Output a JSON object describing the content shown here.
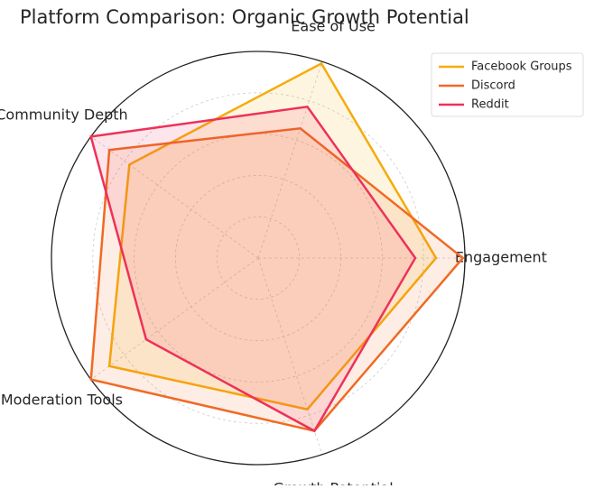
{
  "chart_data": {
    "type": "radar",
    "title": "Platform Comparison: Organic Growth Potential",
    "categories": [
      "Engagement",
      "Ease of Use",
      "Community Depth",
      "Moderation Tools",
      "Growth Potential"
    ],
    "series": [
      {
        "name": "Facebook Groups",
        "color": "#f7ab0a",
        "values": [
          8.6,
          9.9,
          7.7,
          8.9,
          7.7
        ]
      },
      {
        "name": "Discord",
        "color": "#f06a24",
        "values": [
          9.9,
          6.6,
          8.9,
          10,
          8.8
        ]
      },
      {
        "name": "Reddit",
        "color": "#ee3158",
        "values": [
          7.6,
          7.7,
          10,
          6.7,
          8.8
        ]
      }
    ],
    "ylim": [
      0,
      10
    ],
    "yticks": [
      2,
      4,
      6,
      8
    ],
    "grid": true,
    "legend": "upper right"
  }
}
